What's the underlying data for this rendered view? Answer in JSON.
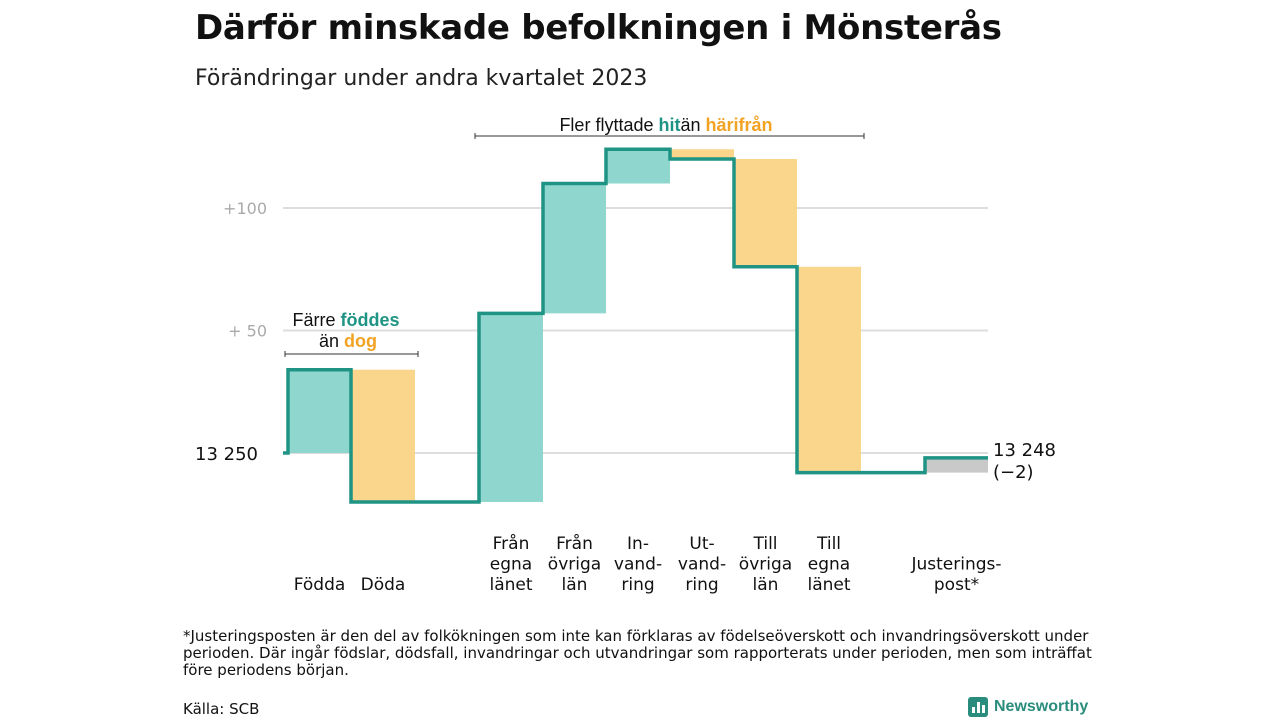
{
  "header": {
    "title": "Därför minskade befolkningen i Mönsterås",
    "subtitle": "Förändringar under andra kvartalet 2023"
  },
  "chart_data": {
    "type": "waterfall",
    "start_value": 13250,
    "start_label": "13  250",
    "end_label": "13 248",
    "end_change_label": "(−2)",
    "y_ticks": [
      {
        "label": "+100",
        "offset": 100
      },
      {
        "label": "+  50",
        "offset": 50
      }
    ],
    "steps": [
      {
        "label_lines": [
          "Födda"
        ],
        "change": 34,
        "kind": "in"
      },
      {
        "label_lines": [
          "Döda"
        ],
        "change": -54,
        "kind": "out"
      },
      {
        "label_lines": [
          "Från",
          "egna",
          "länet"
        ],
        "change": 77,
        "kind": "in"
      },
      {
        "label_lines": [
          "Från",
          "övriga",
          "län"
        ],
        "change": 53,
        "kind": "in"
      },
      {
        "label_lines": [
          "In-",
          "vand-",
          "ring"
        ],
        "change": 14,
        "kind": "in"
      },
      {
        "label_lines": [
          "Ut-",
          "vand-",
          "ring"
        ],
        "change": -4,
        "kind": "out"
      },
      {
        "label_lines": [
          "Till",
          "övriga",
          "län"
        ],
        "change": -44,
        "kind": "out"
      },
      {
        "label_lines": [
          "Till",
          "egna",
          "länet"
        ],
        "change": -84,
        "kind": "out"
      },
      {
        "label_lines": [
          "Justerings-",
          "post*"
        ],
        "change": 6,
        "kind": "adjust"
      }
    ],
    "annotations": [
      {
        "id": "births",
        "parts": [
          {
            "text": "Färre ",
            "role": "plain"
          },
          {
            "text": "föddes",
            "role": "in"
          },
          {
            "text": "än ",
            "role": "plain"
          },
          {
            "text": "dog",
            "role": "out"
          }
        ]
      },
      {
        "id": "moves",
        "parts": [
          {
            "text": "Fler flyttade ",
            "role": "plain"
          },
          {
            "text": "hit",
            "role": "in"
          },
          {
            "text": "än ",
            "role": "plain"
          },
          {
            "text": "härifrån",
            "role": "out"
          }
        ]
      }
    ],
    "grid": true
  },
  "colors": {
    "in_fill": "#8ed6ce",
    "out_fill": "#fad68d",
    "adjust_fill": "#c9c9c9",
    "line": "#1f9484",
    "in_text": "#1f9484",
    "out_text": "#f2a324",
    "grid": "#dddddd",
    "tick_text": "#aaaaaa"
  },
  "footer": {
    "footnote": "*Justeringsposten är den del av folkökningen som inte kan förklaras av födelseöverskott och invandringsöverskott under perioden. Där ingår födslar, dödsfall, invandringar och utvandringar som rapporterats under perioden, men som inträffat före periodens början.",
    "source": "Källa: SCB",
    "brand": "Newsworthy"
  }
}
